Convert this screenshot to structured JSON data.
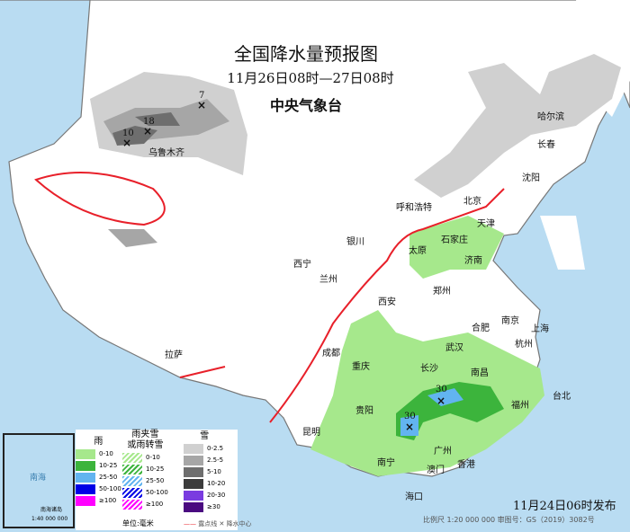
{
  "header": {
    "title": "全国降水量预报图",
    "period": "11月26日08时—27日08时",
    "organization": "中央气象台"
  },
  "issued": "11月24日06时发布",
  "scale_note": "比例尺 1:20 000 000    审图号：GS（2019）3082号",
  "colors": {
    "sea": "#b9dcf2",
    "land": "#ffffff",
    "rain_light": "#a6e88c",
    "rain_moderate": "#3cb43c",
    "rain_heavy": "#62b4f0",
    "snow_light": "#d0d0d0",
    "snow_moderate": "#a6a6a6",
    "snow_heavy": "#6e6e6e",
    "front": "#e8202a"
  },
  "cities": [
    "哈尔滨",
    "长春",
    "沈阳",
    "北京",
    "天津",
    "呼和浩特",
    "太原",
    "石家庄",
    "济南",
    "郑州",
    "银川",
    "西宁",
    "兰州",
    "西安",
    "南京",
    "合肥",
    "上海",
    "武汉",
    "杭州",
    "成都",
    "拉萨",
    "重庆",
    "长沙",
    "南昌",
    "贵阳",
    "福州",
    "台北",
    "昆明",
    "南宁",
    "广州",
    "澳门",
    "香港",
    "海口",
    "乌鲁木齐"
  ],
  "precip_centers": [
    "10",
    "18",
    "7",
    "30",
    "30"
  ],
  "inset": {
    "labels": [
      "南海",
      "南海诸岛",
      "1:40 000 000"
    ]
  },
  "legend": {
    "rain": {
      "title": "雨",
      "items": [
        "0-10",
        "10-25",
        "25-50",
        "50-100",
        "≥100"
      ],
      "colors": [
        "#a6e88c",
        "#3cb43c",
        "#62b4f0",
        "#0000e6",
        "#ff00ff"
      ]
    },
    "mixed": {
      "title": "雨夹雪\n或雨转雪",
      "items": [
        "0-10",
        "10-25",
        "25-50",
        "50-100",
        "≥100"
      ]
    },
    "snow": {
      "title": "雪",
      "items": [
        "0-2.5",
        "2.5-5",
        "5-10",
        "10-20",
        "20-30",
        "≥30"
      ],
      "colors": [
        "#d0d0d0",
        "#a6a6a6",
        "#6e6e6e",
        "#3c3c3c",
        "#7a3ce0",
        "#4a0a80"
      ]
    },
    "unit": "单位:毫米",
    "front_label": "露点线",
    "center_label": "降水中心"
  }
}
